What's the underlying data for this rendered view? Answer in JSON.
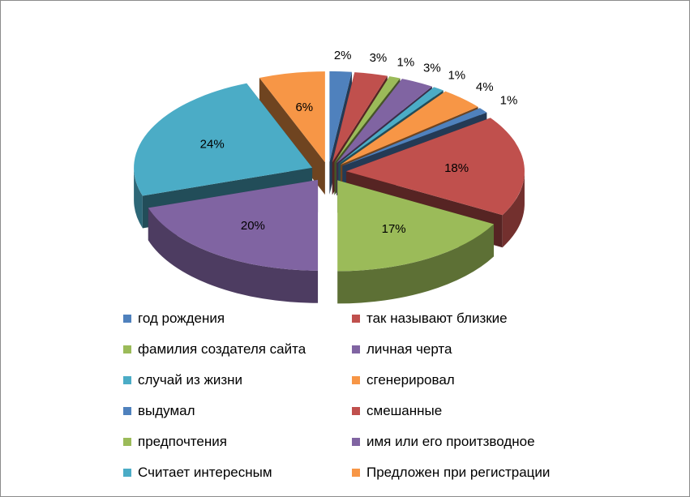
{
  "chart_data": {
    "type": "pie",
    "style": "3d-exploded",
    "title": "",
    "legend_position": "bottom",
    "slices": [
      {
        "label": "год рождения",
        "value": 2,
        "display": "2%",
        "color": "#4f81bd"
      },
      {
        "label": "так называют близкие",
        "value": 3,
        "display": "3%",
        "color": "#c0504d"
      },
      {
        "label": "фамилия создателя сайта",
        "value": 1,
        "display": "1%",
        "color": "#9bbb59"
      },
      {
        "label": "личная черта",
        "value": 3,
        "display": "3%",
        "color": "#8064a2"
      },
      {
        "label": "случай из жизни",
        "value": 1,
        "display": "1%",
        "color": "#4bacc6"
      },
      {
        "label": "сгенерировал",
        "value": 4,
        "display": "4%",
        "color": "#f79646"
      },
      {
        "label": "выдумал",
        "value": 1,
        "display": "1%",
        "color": "#4f81bd"
      },
      {
        "label": "смешанные",
        "value": 18,
        "display": "18%",
        "color": "#c0504d"
      },
      {
        "label": "предпочтения",
        "value": 17,
        "display": "17%",
        "color": "#9bbb59"
      },
      {
        "label": "имя или его проитзводное",
        "value": 20,
        "display": "20%",
        "color": "#8064a2"
      },
      {
        "label": "Считает интересным",
        "value": 24,
        "display": "24%",
        "color": "#4bacc6"
      },
      {
        "label": "Предложен при регистрации",
        "value": 6,
        "display": "6%",
        "color": "#f79646"
      }
    ]
  }
}
